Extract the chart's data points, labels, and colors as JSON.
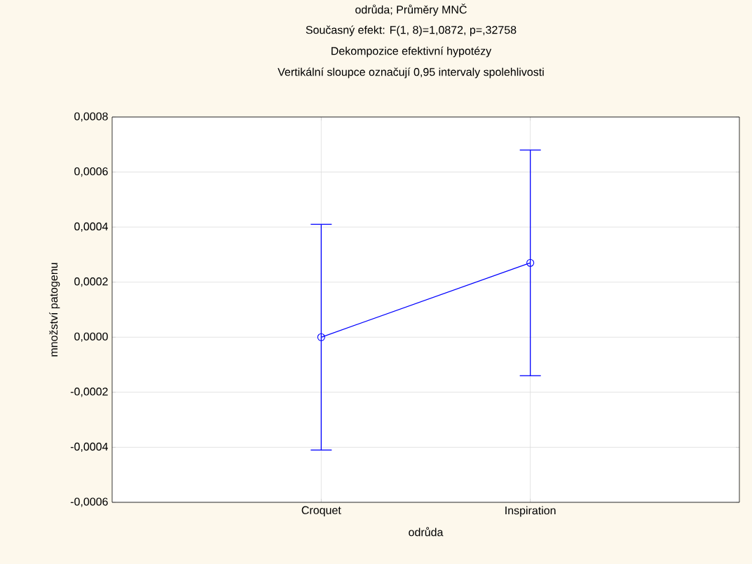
{
  "chart_data": {
    "type": "line",
    "title": "odrůda; Průměry MNČ",
    "subtitle": "Současný efekt: F(1, 8)=1,0872, p=,32758",
    "annotations": [
      "Dekompozice efektivní hypotézy",
      "Vertikální sloupce označují 0,95 intervaly spolehlivosti"
    ],
    "xlabel": "odrůda",
    "ylabel": "množství patogenu",
    "categories": [
      "Croquet",
      "Inspiration"
    ],
    "values": [
      0.0,
      0.00027
    ],
    "errors": [
      0.00041,
      0.00041
    ],
    "color": "#0000ff",
    "ylim": [
      -0.0006,
      0.0008
    ],
    "yticks": [
      {
        "value": -0.0006,
        "label": "-0,0006"
      },
      {
        "value": -0.0004,
        "label": "-0,0004"
      },
      {
        "value": -0.0002,
        "label": "-0,0002"
      },
      {
        "value": 0.0,
        "label": "0,0000"
      },
      {
        "value": 0.0002,
        "label": "0,0002"
      },
      {
        "value": 0.0004,
        "label": "0,0004"
      },
      {
        "value": 0.0006,
        "label": "0,0006"
      },
      {
        "value": 0.0008,
        "label": "0,0008"
      }
    ],
    "grid": true,
    "marker": "circle",
    "line_style": "solid"
  }
}
